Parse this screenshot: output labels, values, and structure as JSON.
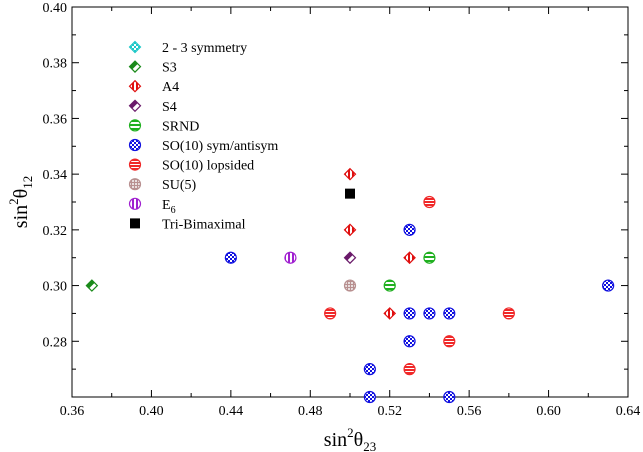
{
  "chart_data": {
    "type": "scatter",
    "xlabel": {
      "base": "sin",
      "sup": "2",
      "sym": "θ",
      "sub": "23"
    },
    "ylabel": {
      "base": "sin",
      "sup": "2",
      "sym": "θ",
      "sub": "12"
    },
    "xlim": [
      0.36,
      0.64
    ],
    "ylim": [
      0.26,
      0.4
    ],
    "x_ticks": [
      "0.36",
      "0.40",
      "0.44",
      "0.48",
      "0.52",
      "0.56",
      "0.60",
      "0.64"
    ],
    "y_ticks": [
      "0.28",
      "0.30",
      "0.32",
      "0.34",
      "0.36",
      "0.38",
      "0.40"
    ],
    "grid": false,
    "legend_position": "top-left",
    "series": [
      {
        "name": "2 - 3 symmetry",
        "marker": "diamond",
        "pattern": "check",
        "color": "#1fc8c8",
        "points": []
      },
      {
        "name": "S3",
        "marker": "diamond",
        "pattern": "half",
        "color": "#1a8a1a",
        "points": [
          [
            0.37,
            0.3
          ]
        ]
      },
      {
        "name": "A4",
        "marker": "diamond",
        "pattern": "vstripe",
        "color": "#e01010",
        "points": [
          [
            0.5,
            0.34
          ],
          [
            0.5,
            0.32
          ],
          [
            0.53,
            0.31
          ],
          [
            0.52,
            0.29
          ]
        ]
      },
      {
        "name": "S4",
        "marker": "diamond",
        "pattern": "half",
        "color": "#6a1a6a",
        "points": [
          [
            0.5,
            0.31
          ]
        ]
      },
      {
        "name": "SRND",
        "marker": "circle",
        "pattern": "hstripe",
        "color": "#20b020",
        "points": [
          [
            0.54,
            0.31
          ],
          [
            0.52,
            0.3
          ]
        ]
      },
      {
        "name": "SO(10) sym/antisym",
        "marker": "circle",
        "pattern": "check",
        "color": "#1010e0",
        "points": [
          [
            0.44,
            0.31
          ],
          [
            0.53,
            0.32
          ],
          [
            0.63,
            0.3
          ],
          [
            0.53,
            0.29
          ],
          [
            0.54,
            0.29
          ],
          [
            0.55,
            0.29
          ],
          [
            0.53,
            0.28
          ],
          [
            0.51,
            0.27
          ],
          [
            0.51,
            0.26
          ],
          [
            0.55,
            0.26
          ]
        ]
      },
      {
        "name": "SO(10) lopsided",
        "marker": "circle",
        "pattern": "rings",
        "color": "#f02828",
        "points": [
          [
            0.54,
            0.33
          ],
          [
            0.49,
            0.29
          ],
          [
            0.58,
            0.29
          ],
          [
            0.55,
            0.28
          ],
          [
            0.53,
            0.27
          ]
        ]
      },
      {
        "name": "SU(5)",
        "marker": "circle",
        "pattern": "cross",
        "color": "#b89090",
        "points": [
          [
            0.5,
            0.3
          ]
        ]
      },
      {
        "name": "E",
        "name_sub": "6",
        "marker": "circle",
        "pattern": "vstripe",
        "color": "#a020d0",
        "points": [
          [
            0.47,
            0.31
          ]
        ]
      },
      {
        "name": "Tri-Bimaximal",
        "marker": "square",
        "pattern": "solid",
        "color": "#000000",
        "points": [
          [
            0.5,
            0.333
          ]
        ]
      }
    ]
  }
}
